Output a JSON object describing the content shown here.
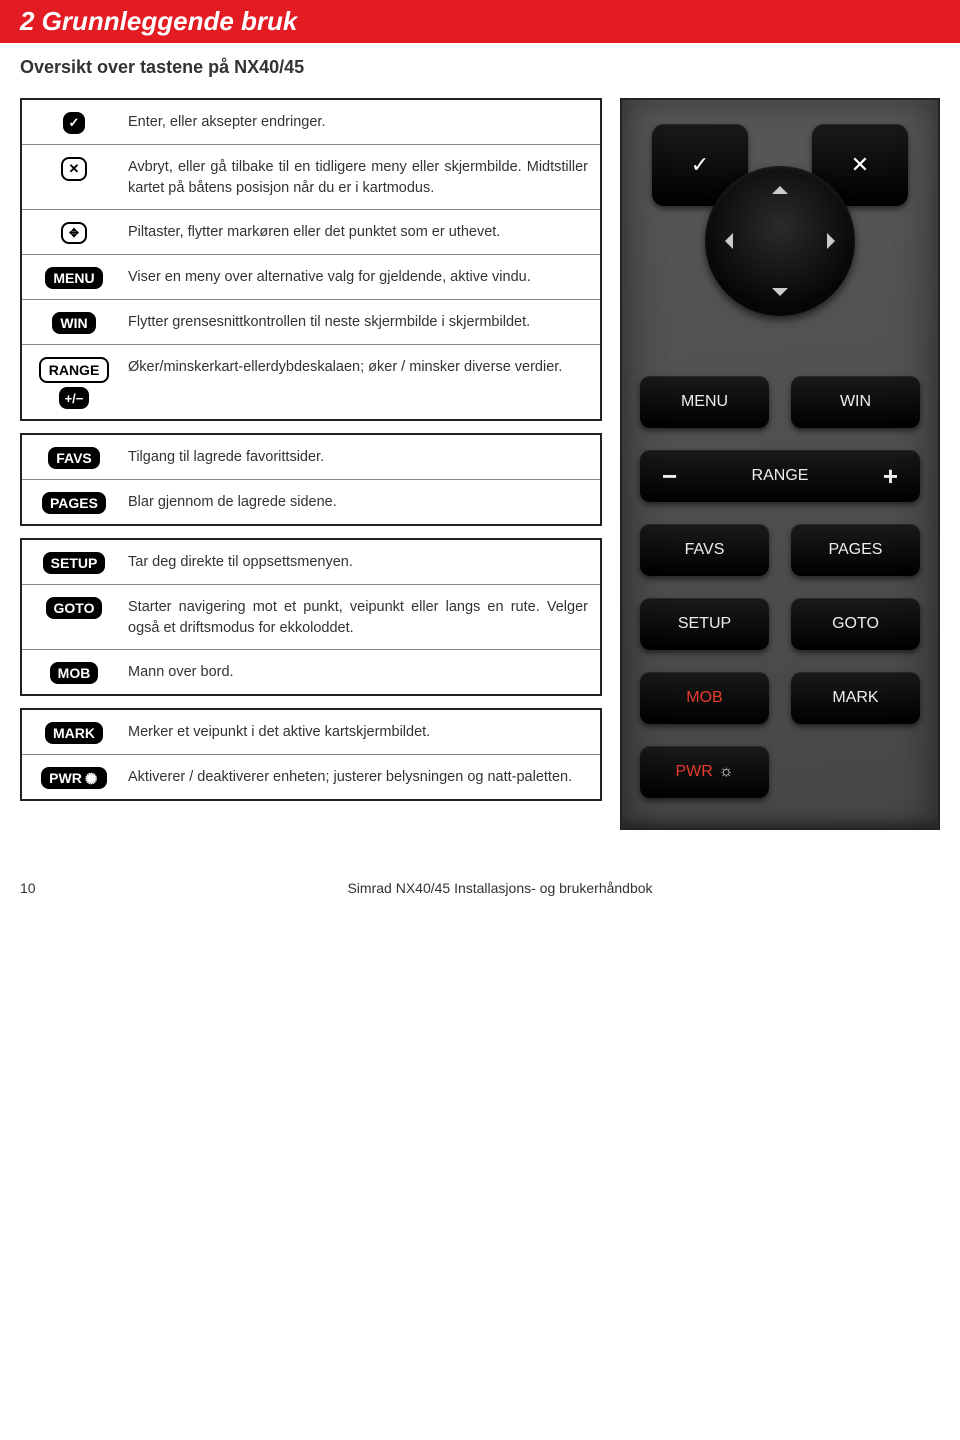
{
  "header": {
    "title": "2 Grunnleggende bruk"
  },
  "subtitle": "Oversikt over tastene på NX40/45",
  "legend_groups": [
    {
      "rows": [
        {
          "icon": "check",
          "label": "",
          "desc": "Enter, eller aksepter endringer."
        },
        {
          "icon": "x",
          "label": "",
          "desc": "Avbryt, eller gå tilbake til en tidligere meny eller skjermbilde. Midtstiller kartet på båtens posisjon når du er i kartmodus."
        },
        {
          "icon": "dpad",
          "label": "",
          "desc": "Piltaster, flytter markøren eller det punktet som er uthevet."
        },
        {
          "icon": "text",
          "label": "MENU",
          "desc": "Viser en meny over alternative valg for gjeldende, aktive vindu."
        },
        {
          "icon": "text",
          "label": "WIN",
          "desc": "Flytter grensesnittkontrollen til neste skjermbilde i skjermbildet."
        },
        {
          "icon": "range",
          "label": "RANGE",
          "sublabel": "+/−",
          "desc": "Øker/minskerkart-ellerdybdeskalaen; øker / minsker diverse verdier."
        }
      ]
    },
    {
      "rows": [
        {
          "icon": "text",
          "label": "FAVS",
          "desc": "Tilgang til lagrede favorittsider."
        },
        {
          "icon": "text",
          "label": "PAGES",
          "desc": "Blar gjennom de lagrede sidene."
        }
      ]
    },
    {
      "rows": [
        {
          "icon": "text",
          "label": "SETUP",
          "desc": "Tar deg direkte til oppsettsmenyen."
        },
        {
          "icon": "text",
          "label": "GOTO",
          "desc": "Starter navigering mot et punkt, veipunkt eller langs en rute. Velger også et driftsmodus for ekkoloddet."
        },
        {
          "icon": "text",
          "label": "MOB",
          "desc": "Mann over bord."
        }
      ]
    },
    {
      "rows": [
        {
          "icon": "text",
          "label": "MARK",
          "desc": "Merker et veipunkt i det aktive kartskjermbildet."
        },
        {
          "icon": "pwr",
          "label": "PWR",
          "desc": "Aktiverer / deaktiverer enheten; justerer belysningen og natt-paletten."
        }
      ]
    }
  ],
  "remote": {
    "menu": "MENU",
    "win": "WIN",
    "range": "RANGE",
    "favs": "FAVS",
    "pages": "PAGES",
    "setup": "SETUP",
    "goto": "GOTO",
    "mob": "MOB",
    "mark": "MARK",
    "pwr": "PWR"
  },
  "footer": {
    "page": "10",
    "title": "Simrad NX40/45 Installasjons- og brukerhåndbok"
  },
  "colors": {
    "brand_red": "#e31b23",
    "remote_bg": "#505050",
    "btn_bg": "#000000",
    "btn_text": "#eeeeee",
    "mob_red": "#e63b2e"
  }
}
